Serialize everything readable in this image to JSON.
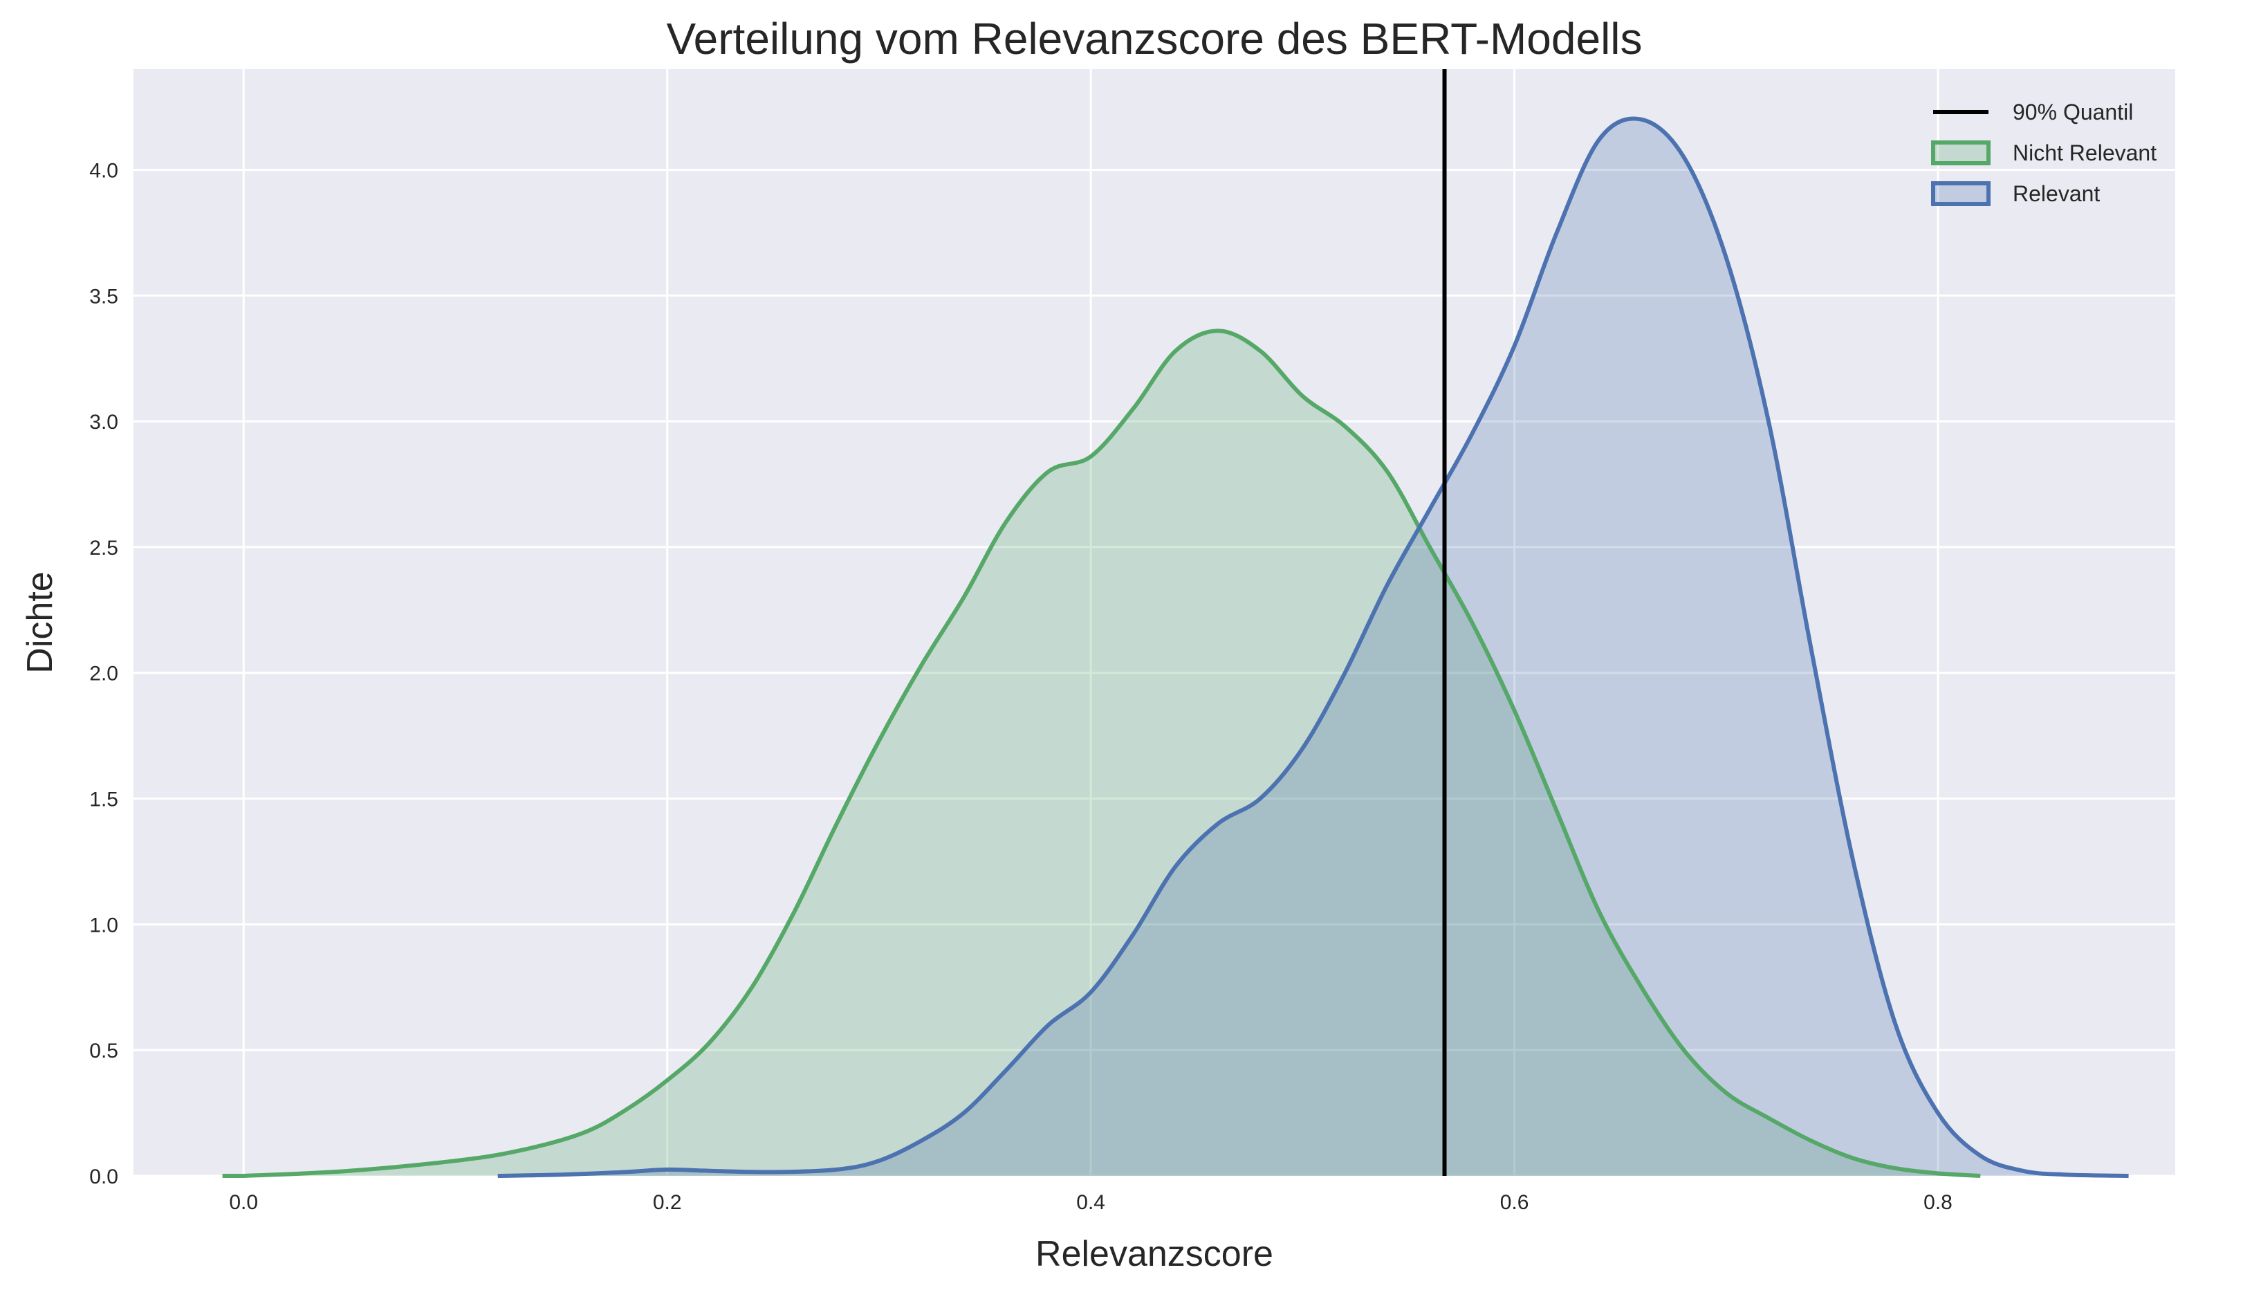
{
  "chart_data": {
    "type": "area",
    "title": "Verteilung vom Relevanzscore des BERT-Modells",
    "xlabel": "Relevanzscore",
    "ylabel": "Dichte",
    "xlim": [
      -0.052,
      0.912
    ],
    "ylim": [
      0,
      4.4
    ],
    "xticks": [
      {
        "value": 0.0,
        "label": "0.0"
      },
      {
        "value": 0.2,
        "label": "0.2"
      },
      {
        "value": 0.4,
        "label": "0.4"
      },
      {
        "value": 0.6,
        "label": "0.6"
      },
      {
        "value": 0.8,
        "label": "0.8"
      }
    ],
    "yticks": [
      {
        "value": 0.0,
        "label": "0.0"
      },
      {
        "value": 0.5,
        "label": "0.5"
      },
      {
        "value": 1.0,
        "label": "1.0"
      },
      {
        "value": 1.5,
        "label": "1.5"
      },
      {
        "value": 2.0,
        "label": "2.0"
      },
      {
        "value": 2.5,
        "label": "2.5"
      },
      {
        "value": 3.0,
        "label": "3.0"
      },
      {
        "value": 3.5,
        "label": "3.5"
      },
      {
        "value": 4.0,
        "label": "4.0"
      }
    ],
    "grid": true,
    "legend_position": "top-right",
    "background_color": "#eaeaf2",
    "grid_color": "#ffffff",
    "quantile_line": {
      "name": "90% Quantil",
      "x": 0.567,
      "color": "#000000"
    },
    "series": [
      {
        "name": "Nicht Relevant",
        "color": "#55a868",
        "x": [
          -0.01,
          0.0,
          0.05,
          0.1,
          0.13,
          0.16,
          0.18,
          0.2,
          0.22,
          0.24,
          0.26,
          0.28,
          0.3,
          0.32,
          0.34,
          0.36,
          0.38,
          0.4,
          0.42,
          0.44,
          0.46,
          0.48,
          0.5,
          0.52,
          0.54,
          0.56,
          0.58,
          0.6,
          0.62,
          0.64,
          0.66,
          0.68,
          0.7,
          0.72,
          0.74,
          0.76,
          0.78,
          0.8,
          0.82
        ],
        "y": [
          0.0,
          0.0,
          0.02,
          0.06,
          0.1,
          0.17,
          0.26,
          0.38,
          0.53,
          0.75,
          1.05,
          1.4,
          1.73,
          2.03,
          2.3,
          2.6,
          2.8,
          2.86,
          3.05,
          3.28,
          3.36,
          3.28,
          3.1,
          2.98,
          2.8,
          2.5,
          2.2,
          1.85,
          1.45,
          1.05,
          0.75,
          0.5,
          0.33,
          0.23,
          0.14,
          0.07,
          0.03,
          0.01,
          0.0
        ]
      },
      {
        "name": "Relevant",
        "color": "#4c72b0",
        "x": [
          0.12,
          0.15,
          0.18,
          0.2,
          0.22,
          0.25,
          0.28,
          0.3,
          0.32,
          0.34,
          0.36,
          0.38,
          0.4,
          0.42,
          0.44,
          0.46,
          0.48,
          0.5,
          0.52,
          0.54,
          0.56,
          0.58,
          0.6,
          0.62,
          0.64,
          0.66,
          0.68,
          0.7,
          0.72,
          0.74,
          0.76,
          0.78,
          0.8,
          0.82,
          0.84,
          0.86,
          0.89
        ],
        "y": [
          0.0,
          0.005,
          0.015,
          0.025,
          0.02,
          0.015,
          0.025,
          0.06,
          0.14,
          0.25,
          0.42,
          0.6,
          0.73,
          0.96,
          1.23,
          1.4,
          1.5,
          1.7,
          2.0,
          2.35,
          2.65,
          2.95,
          3.3,
          3.75,
          4.12,
          4.2,
          4.05,
          3.65,
          3.0,
          2.1,
          1.25,
          0.6,
          0.25,
          0.08,
          0.02,
          0.005,
          0.0
        ]
      }
    ]
  }
}
